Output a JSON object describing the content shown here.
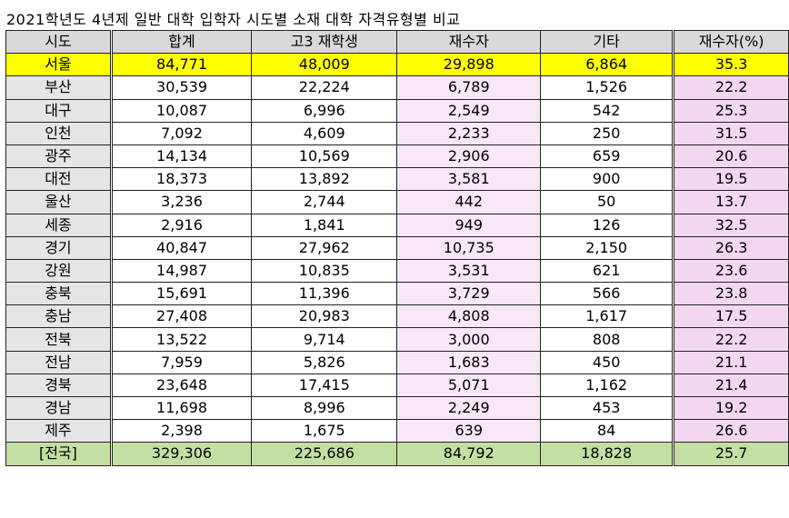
{
  "title": "2021학년도 4년제 일반 대학 입학자 시도별 소재 대학 자격유형별 비교",
  "headers": [
    "시도",
    "합계",
    "고3 재학생",
    "재수자",
    "기타",
    "재수자(%)"
  ],
  "rows": [
    [
      "서울",
      "84,771",
      "48,009",
      "29,898",
      "6,864",
      "35.3"
    ],
    [
      "부산",
      "30,539",
      "22,224",
      "6,789",
      "1,526",
      "22.2"
    ],
    [
      "대구",
      "10,087",
      "6,996",
      "2,549",
      "542",
      "25.3"
    ],
    [
      "인천",
      "7,092",
      "4,609",
      "2,233",
      "250",
      "31.5"
    ],
    [
      "광주",
      "14,134",
      "10,569",
      "2,906",
      "659",
      "20.6"
    ],
    [
      "대전",
      "18,373",
      "13,892",
      "3,581",
      "900",
      "19.5"
    ],
    [
      "울산",
      "3,236",
      "2,744",
      "442",
      "50",
      "13.7"
    ],
    [
      "세종",
      "2,916",
      "1,841",
      "949",
      "126",
      "32.5"
    ],
    [
      "경기",
      "40,847",
      "27,962",
      "10,735",
      "2,150",
      "26.3"
    ],
    [
      "강원",
      "14,987",
      "10,835",
      "3,531",
      "621",
      "23.6"
    ],
    [
      "충북",
      "15,691",
      "11,396",
      "3,729",
      "566",
      "23.8"
    ],
    [
      "충남",
      "27,408",
      "20,983",
      "4,808",
      "1,617",
      "17.5"
    ],
    [
      "전북",
      "13,522",
      "9,714",
      "3,000",
      "808",
      "22.2"
    ],
    [
      "전남",
      "7,959",
      "5,826",
      "1,683",
      "450",
      "21.1"
    ],
    [
      "경북",
      "23,648",
      "17,415",
      "5,071",
      "1,162",
      "21.4"
    ],
    [
      "경남",
      "11,698",
      "8,996",
      "2,249",
      "453",
      "19.2"
    ],
    [
      "제주",
      "2,398",
      "1,675",
      "639",
      "84",
      "26.6"
    ]
  ],
  "total": [
    "[전국]",
    "329,306",
    "225,686",
    "84,792",
    "18,828",
    "25.7"
  ],
  "colors": {
    "header_bg": "#d9d9d9",
    "seoul_highlight": "#ffff00",
    "total_bg": "#c4dfa3",
    "region_bg": "#e5e5e5",
    "repeaters_bg": "#f8e8f6",
    "repeaters_pct_bg": "#f3d7ef"
  }
}
